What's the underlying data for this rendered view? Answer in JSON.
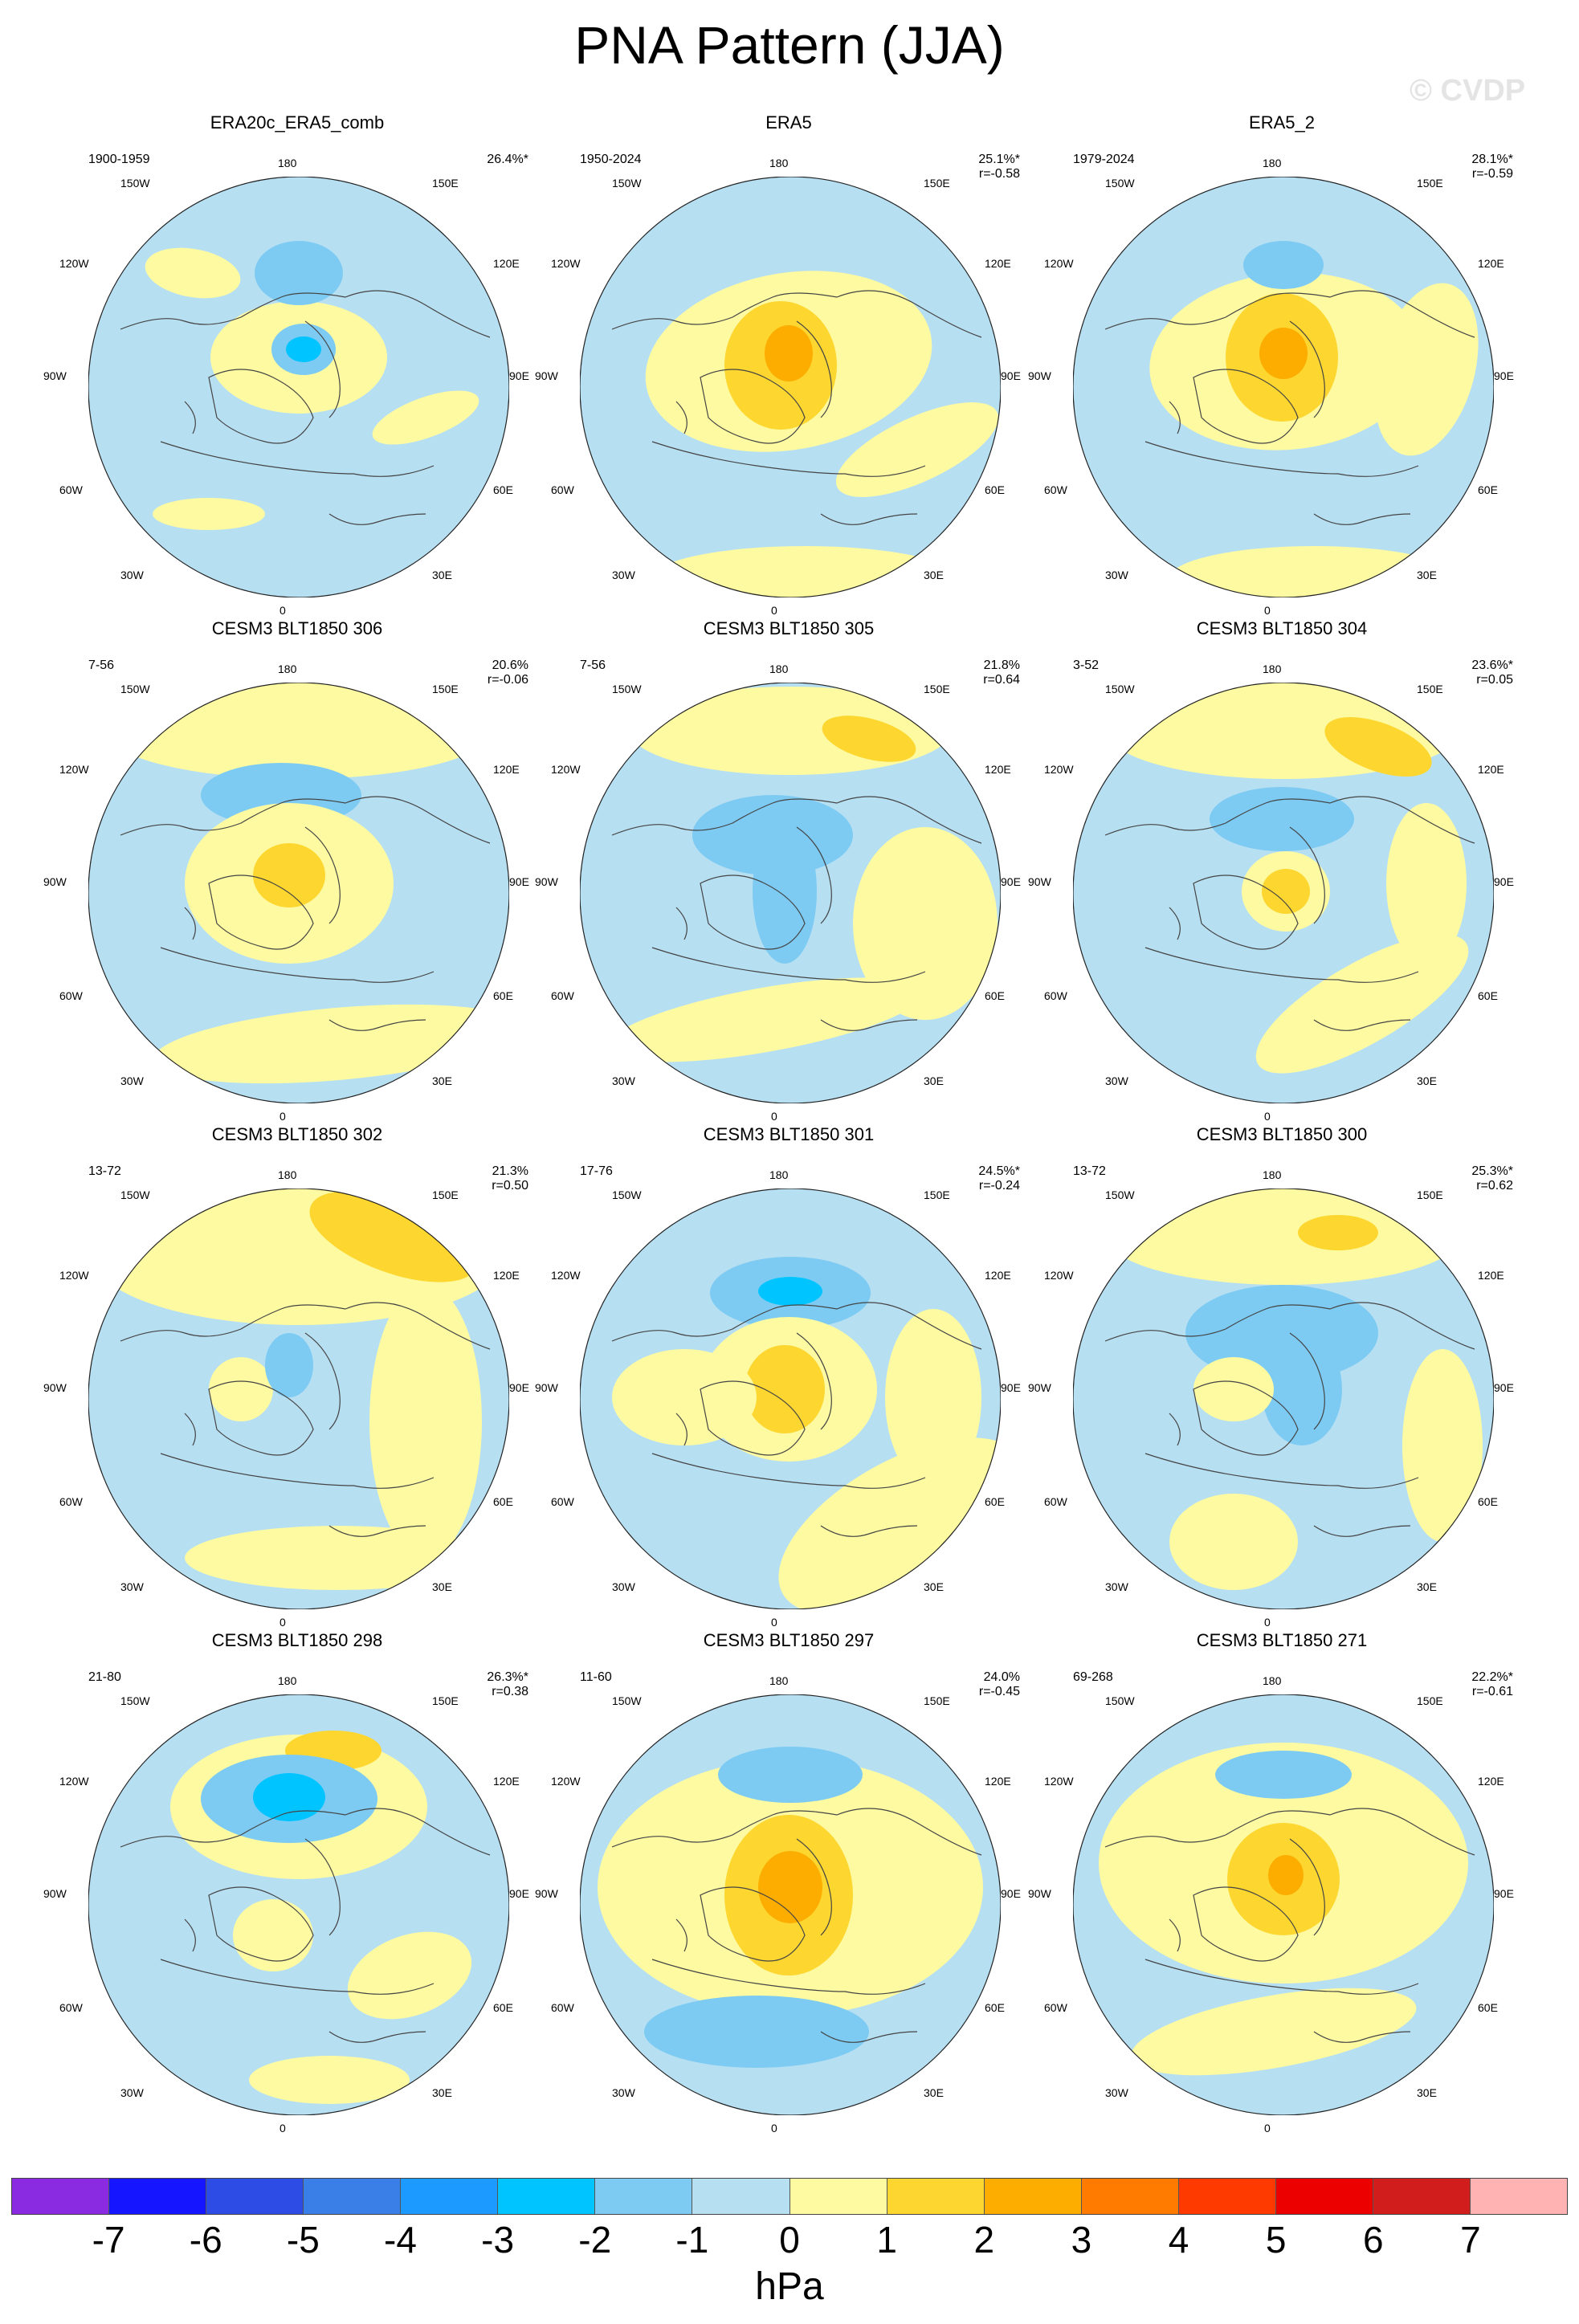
{
  "title": "PNA Pattern (JJA)",
  "watermark": "© CVDP",
  "axis_labels": {
    "top": "180",
    "bottom": "0",
    "left_top": "150W",
    "right_top": "150E",
    "left_upper": "120W",
    "right_upper": "120E",
    "left_mid": "90W",
    "right_mid": "90E",
    "left_lower": "60W",
    "right_lower": "60E",
    "left_bottom": "30W",
    "right_bottom": "30E"
  },
  "panels": [
    {
      "title": "ERA20c_ERA5_comb",
      "years": "1900-1959",
      "pct": "26.4%*",
      "r": ""
    },
    {
      "title": "ERA5",
      "years": "1950-2024",
      "pct": "25.1%*",
      "r": "r=-0.58"
    },
    {
      "title": "ERA5_2",
      "years": "1979-2024",
      "pct": "28.1%*",
      "r": "r=-0.59"
    },
    {
      "title": "CESM3 BLT1850 306",
      "years": "7-56",
      "pct": "20.6%",
      "r": "r=-0.06"
    },
    {
      "title": "CESM3 BLT1850 305",
      "years": "7-56",
      "pct": "21.8%",
      "r": "r=0.64"
    },
    {
      "title": "CESM3 BLT1850 304",
      "years": "3-52",
      "pct": "23.6%*",
      "r": "r=0.05"
    },
    {
      "title": "CESM3 BLT1850 302",
      "years": "13-72",
      "pct": "21.3%",
      "r": "r=0.50"
    },
    {
      "title": "CESM3 BLT1850 301",
      "years": "17-76",
      "pct": "24.5%*",
      "r": "r=-0.24"
    },
    {
      "title": "CESM3 BLT1850 300",
      "years": "13-72",
      "pct": "25.3%*",
      "r": "r=0.62"
    },
    {
      "title": "CESM3 BLT1850 298",
      "years": "21-80",
      "pct": "26.3%*",
      "r": "r=0.38"
    },
    {
      "title": "CESM3 BLT1850 297",
      "years": "11-60",
      "pct": "24.0%",
      "r": "r=-0.45"
    },
    {
      "title": "CESM3 BLT1850 271",
      "years": "69-268",
      "pct": "22.2%*",
      "r": "r=-0.61"
    }
  ],
  "colorbar": {
    "unit": "hPa",
    "ticks": [
      "-7",
      "-6",
      "-5",
      "-4",
      "-3",
      "-2",
      "-1",
      "0",
      "1",
      "2",
      "3",
      "4",
      "5",
      "6",
      "7"
    ],
    "colors": [
      "#8a2be2",
      "#1515ff",
      "#2c4ce5",
      "#3a7fe8",
      "#1c9aff",
      "#00c4ff",
      "#7dcbf3",
      "#b7dff2",
      "#fdfaa2",
      "#fdd630",
      "#fdac00",
      "#ff7b00",
      "#ff3a00",
      "#ec0000",
      "#d21d1d",
      "#ffb3b3"
    ]
  },
  "style": {
    "ocean_background": "#b7dff2",
    "positive_1": "#fdfaa2",
    "positive_2": "#fdd630",
    "positive_3": "#fdac00",
    "positive_4": "#ff7b00",
    "negative_1": "#7dcbf3",
    "negative_2": "#00c4ff",
    "coast_color": "#444444"
  }
}
